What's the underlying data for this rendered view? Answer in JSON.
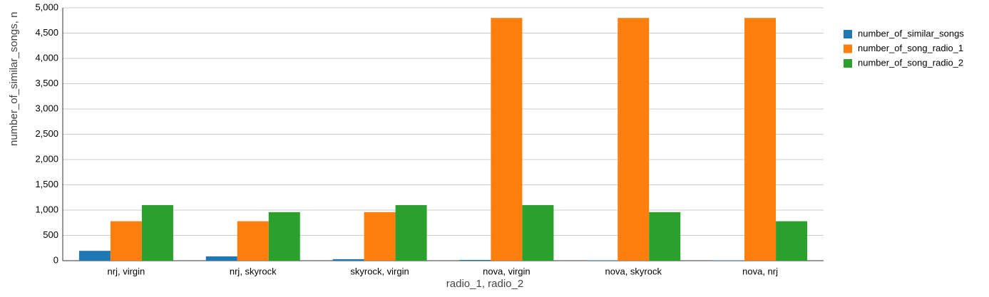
{
  "chart_data": {
    "type": "bar",
    "x_label": "radio_1, radio_2",
    "y_label": "number_of_similar_songs, n",
    "categories": [
      "nrj, virgin",
      "nrj, skyrock",
      "skyrock, virgin",
      "nova, virgin",
      "nova, skyrock",
      "nova, nrj"
    ],
    "series": [
      {
        "name": "number_of_similar_songs",
        "color": "#1f77b4",
        "values": [
          195,
          85,
          30,
          15,
          8,
          5
        ]
      },
      {
        "name": "number_of_song_radio_1",
        "color": "#ff7f0e",
        "values": [
          780,
          780,
          960,
          4800,
          4800,
          4800
        ]
      },
      {
        "name": "number_of_song_radio_2",
        "color": "#2ca02c",
        "values": [
          1100,
          960,
          1100,
          1100,
          960,
          780
        ]
      }
    ],
    "ylim": [
      0,
      5000
    ],
    "yticks": [
      0,
      500,
      {
        "value": 1000,
        "label": "1,000"
      },
      {
        "value": 1500,
        "label": "1,500"
      },
      {
        "value": 2000,
        "label": "2,000"
      },
      {
        "value": 2500,
        "label": "2,500"
      },
      {
        "value": 3000,
        "label": "3,000"
      },
      {
        "value": 3500,
        "label": "3,500"
      },
      {
        "value": 4000,
        "label": "4,000"
      },
      {
        "value": 4500,
        "label": "4,500"
      },
      {
        "value": 5000,
        "label": "5,000"
      }
    ],
    "grid": true,
    "legend": "right"
  }
}
